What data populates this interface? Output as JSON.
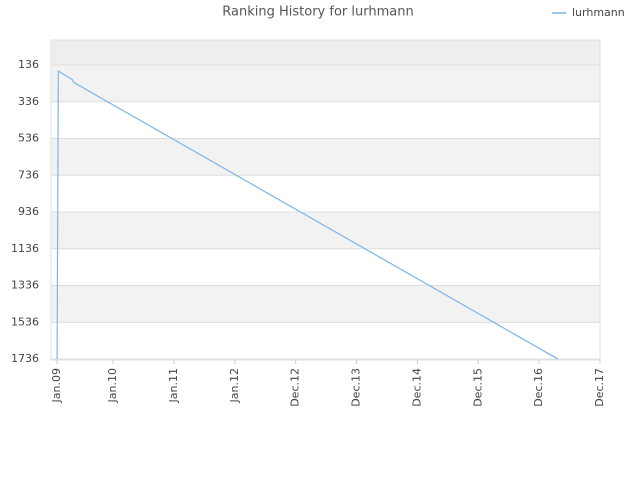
{
  "chart_data": {
    "type": "line",
    "title": "Ranking History for lurhmann",
    "x": [
      2009.0,
      2009.02,
      2009.25,
      2009.27,
      2017.23
    ],
    "series": [
      {
        "name": "lurhmann",
        "color": "#7cb5ec",
        "values": [
          1736,
          169,
          215,
          230,
          1736
        ]
      }
    ],
    "xlim": [
      2008.9,
      2017.92
    ],
    "xticks": [
      {
        "value": 2009.0,
        "label": "Jan.09"
      },
      {
        "value": 2009.92,
        "label": "Jan.10"
      },
      {
        "value": 2010.92,
        "label": "Jan.11"
      },
      {
        "value": 2011.92,
        "label": "Jan.12"
      },
      {
        "value": 2012.92,
        "label": "Dec.12"
      },
      {
        "value": 2013.92,
        "label": "Dec.13"
      },
      {
        "value": 2014.92,
        "label": "Dec.14"
      },
      {
        "value": 2015.92,
        "label": "Dec.15"
      },
      {
        "value": 2016.92,
        "label": "Dec.16"
      },
      {
        "value": 2017.92,
        "label": "Dec.17"
      }
    ],
    "ylim": [
      1741,
      0
    ],
    "yticks": [
      136,
      336,
      536,
      736,
      936,
      1136,
      1336,
      1536,
      1736
    ],
    "grid": true,
    "legend": "top-right"
  }
}
